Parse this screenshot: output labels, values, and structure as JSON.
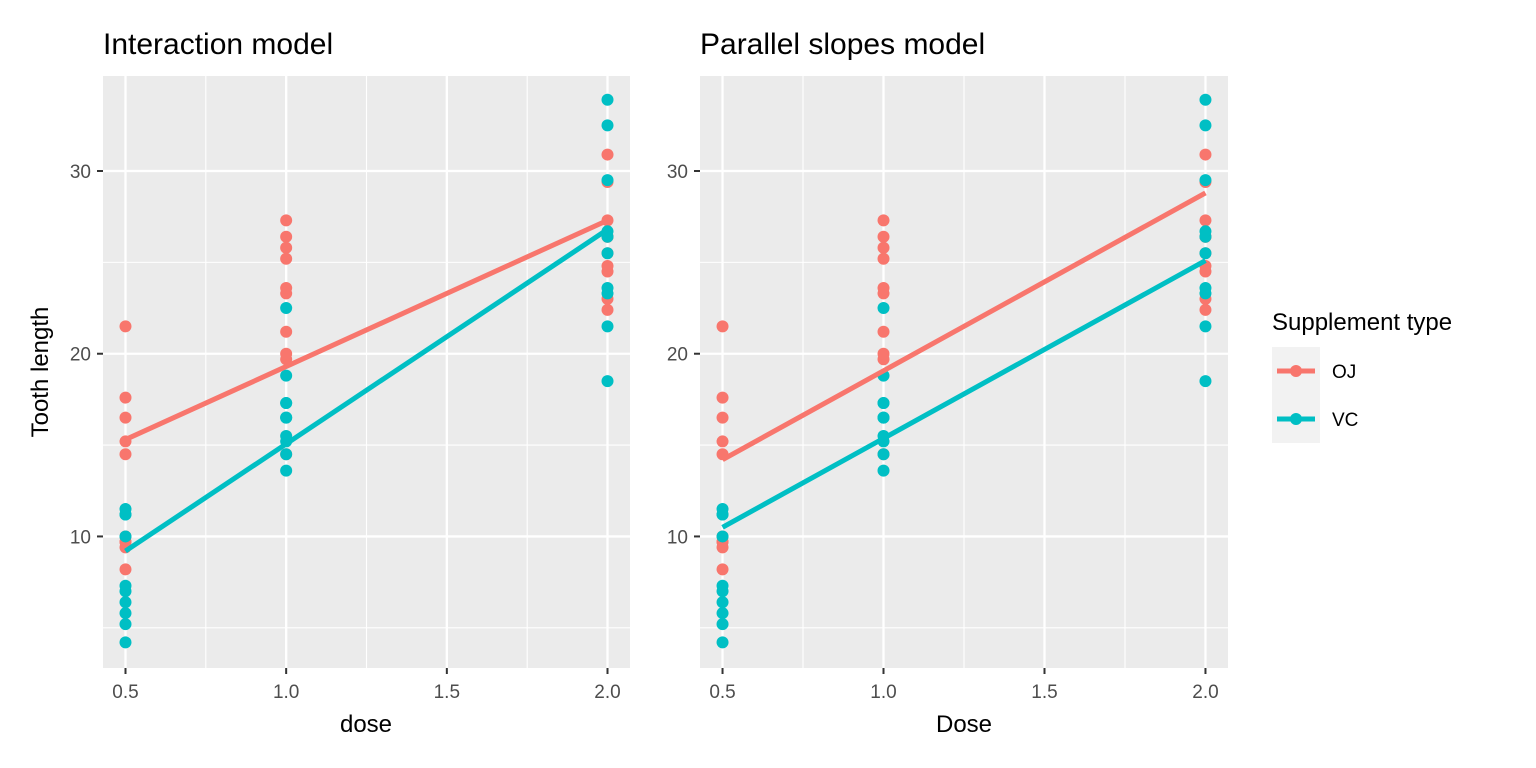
{
  "chart_data": [
    {
      "type": "scatter",
      "title": "Interaction model",
      "xlabel": "dose",
      "ylabel": "Tooth length",
      "xlim": [
        0.43,
        2.07
      ],
      "ylim": [
        2.8,
        35.2
      ],
      "x_ticks": [
        0.5,
        1.0,
        1.5,
        2.0
      ],
      "x_tick_labels": [
        "0.5",
        "1.0",
        "1.5",
        "2.0"
      ],
      "y_ticks": [
        10,
        20,
        30
      ],
      "y_tick_labels": [
        "10",
        "20",
        "30"
      ],
      "grid": true,
      "series": [
        {
          "name": "OJ",
          "color": "#F8766D",
          "points": [
            [
              0.5,
              15.2
            ],
            [
              0.5,
              21.5
            ],
            [
              0.5,
              17.6
            ],
            [
              0.5,
              9.7
            ],
            [
              0.5,
              14.5
            ],
            [
              0.5,
              10.0
            ],
            [
              0.5,
              8.2
            ],
            [
              0.5,
              9.4
            ],
            [
              0.5,
              16.5
            ],
            [
              0.5,
              9.7
            ],
            [
              1.0,
              19.7
            ],
            [
              1.0,
              23.3
            ],
            [
              1.0,
              23.6
            ],
            [
              1.0,
              26.4
            ],
            [
              1.0,
              20.0
            ],
            [
              1.0,
              25.2
            ],
            [
              1.0,
              25.8
            ],
            [
              1.0,
              21.2
            ],
            [
              1.0,
              14.5
            ],
            [
              1.0,
              27.3
            ],
            [
              2.0,
              25.5
            ],
            [
              2.0,
              26.4
            ],
            [
              2.0,
              22.4
            ],
            [
              2.0,
              24.5
            ],
            [
              2.0,
              24.8
            ],
            [
              2.0,
              30.9
            ],
            [
              2.0,
              26.4
            ],
            [
              2.0,
              27.3
            ],
            [
              2.0,
              29.4
            ],
            [
              2.0,
              23.0
            ]
          ],
          "fit_line": [
            [
              0.5,
              15.3
            ],
            [
              2.0,
              27.3
            ]
          ]
        },
        {
          "name": "VC",
          "color": "#00BFC4",
          "points": [
            [
              0.5,
              4.2
            ],
            [
              0.5,
              11.5
            ],
            [
              0.5,
              7.3
            ],
            [
              0.5,
              5.8
            ],
            [
              0.5,
              6.4
            ],
            [
              0.5,
              10.0
            ],
            [
              0.5,
              11.2
            ],
            [
              0.5,
              11.2
            ],
            [
              0.5,
              5.2
            ],
            [
              0.5,
              7.0
            ],
            [
              1.0,
              16.5
            ],
            [
              1.0,
              16.5
            ],
            [
              1.0,
              15.2
            ],
            [
              1.0,
              17.3
            ],
            [
              1.0,
              22.5
            ],
            [
              1.0,
              17.3
            ],
            [
              1.0,
              13.6
            ],
            [
              1.0,
              14.5
            ],
            [
              1.0,
              18.8
            ],
            [
              1.0,
              15.5
            ],
            [
              2.0,
              23.6
            ],
            [
              2.0,
              18.5
            ],
            [
              2.0,
              33.9
            ],
            [
              2.0,
              25.5
            ],
            [
              2.0,
              26.4
            ],
            [
              2.0,
              32.5
            ],
            [
              2.0,
              26.7
            ],
            [
              2.0,
              21.5
            ],
            [
              2.0,
              23.3
            ],
            [
              2.0,
              29.5
            ]
          ],
          "fit_line": [
            [
              0.5,
              9.2
            ],
            [
              2.0,
              26.8
            ]
          ]
        }
      ]
    },
    {
      "type": "scatter",
      "title": "Parallel slopes model",
      "xlabel": "Dose",
      "ylabel": "",
      "xlim": [
        0.43,
        2.07
      ],
      "ylim": [
        2.8,
        35.2
      ],
      "x_ticks": [
        0.5,
        1.0,
        1.5,
        2.0
      ],
      "x_tick_labels": [
        "0.5",
        "1.0",
        "1.5",
        "2.0"
      ],
      "y_ticks": [
        10,
        20,
        30
      ],
      "y_tick_labels": [
        "10",
        "20",
        "30"
      ],
      "grid": true,
      "series": [
        {
          "name": "OJ",
          "color": "#F8766D",
          "points": [
            [
              0.5,
              15.2
            ],
            [
              0.5,
              21.5
            ],
            [
              0.5,
              17.6
            ],
            [
              0.5,
              9.7
            ],
            [
              0.5,
              14.5
            ],
            [
              0.5,
              10.0
            ],
            [
              0.5,
              8.2
            ],
            [
              0.5,
              9.4
            ],
            [
              0.5,
              16.5
            ],
            [
              0.5,
              9.7
            ],
            [
              1.0,
              19.7
            ],
            [
              1.0,
              23.3
            ],
            [
              1.0,
              23.6
            ],
            [
              1.0,
              26.4
            ],
            [
              1.0,
              20.0
            ],
            [
              1.0,
              25.2
            ],
            [
              1.0,
              25.8
            ],
            [
              1.0,
              21.2
            ],
            [
              1.0,
              14.5
            ],
            [
              1.0,
              27.3
            ],
            [
              2.0,
              25.5
            ],
            [
              2.0,
              26.4
            ],
            [
              2.0,
              22.4
            ],
            [
              2.0,
              24.5
            ],
            [
              2.0,
              24.8
            ],
            [
              2.0,
              30.9
            ],
            [
              2.0,
              26.4
            ],
            [
              2.0,
              27.3
            ],
            [
              2.0,
              29.4
            ],
            [
              2.0,
              23.0
            ]
          ],
          "fit_line": [
            [
              0.5,
              14.2
            ],
            [
              2.0,
              28.8
            ]
          ]
        },
        {
          "name": "VC",
          "color": "#00BFC4",
          "points": [
            [
              0.5,
              4.2
            ],
            [
              0.5,
              11.5
            ],
            [
              0.5,
              7.3
            ],
            [
              0.5,
              5.8
            ],
            [
              0.5,
              6.4
            ],
            [
              0.5,
              10.0
            ],
            [
              0.5,
              11.2
            ],
            [
              0.5,
              11.2
            ],
            [
              0.5,
              5.2
            ],
            [
              0.5,
              7.0
            ],
            [
              1.0,
              16.5
            ],
            [
              1.0,
              16.5
            ],
            [
              1.0,
              15.2
            ],
            [
              1.0,
              17.3
            ],
            [
              1.0,
              22.5
            ],
            [
              1.0,
              17.3
            ],
            [
              1.0,
              13.6
            ],
            [
              1.0,
              14.5
            ],
            [
              1.0,
              18.8
            ],
            [
              1.0,
              15.5
            ],
            [
              2.0,
              23.6
            ],
            [
              2.0,
              18.5
            ],
            [
              2.0,
              33.9
            ],
            [
              2.0,
              25.5
            ],
            [
              2.0,
              26.4
            ],
            [
              2.0,
              32.5
            ],
            [
              2.0,
              26.7
            ],
            [
              2.0,
              21.5
            ],
            [
              2.0,
              23.3
            ],
            [
              2.0,
              29.5
            ]
          ],
          "fit_line": [
            [
              0.5,
              10.5
            ],
            [
              2.0,
              25.1
            ]
          ]
        }
      ]
    }
  ],
  "legend": {
    "title": "Supplement type",
    "placement": "right",
    "items": [
      {
        "label": "OJ",
        "color": "#F8766D"
      },
      {
        "label": "VC",
        "color": "#00BFC4"
      }
    ]
  }
}
